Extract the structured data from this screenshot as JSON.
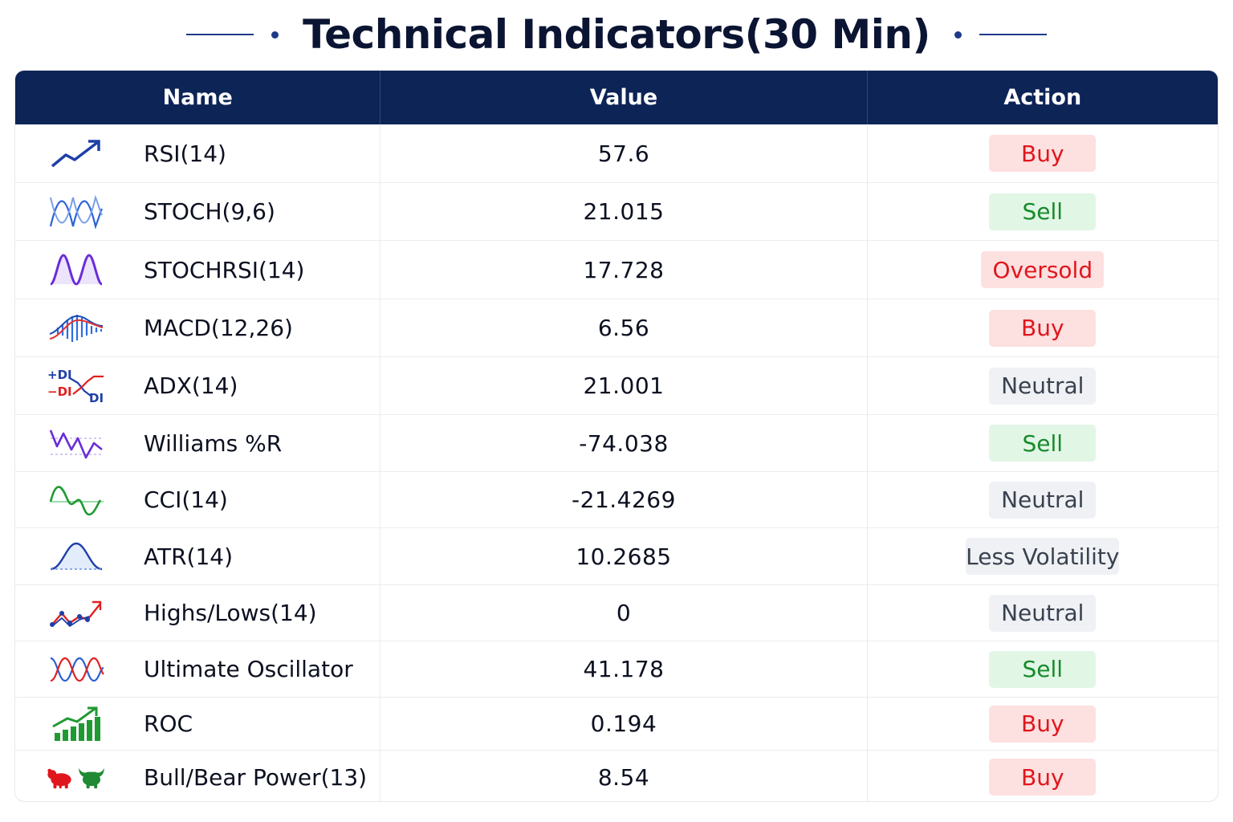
{
  "title": "Technical Indicators(30 Min)",
  "columns": {
    "name": "Name",
    "value": "Value",
    "action": "Action"
  },
  "rows": [
    {
      "name": "RSI(14)",
      "value": "57.6",
      "action": "Buy",
      "action_type": "buy",
      "icon": "trend-up-arrow-icon"
    },
    {
      "name": "STOCH(9,6)",
      "value": "21.015",
      "action": "Sell",
      "action_type": "sell",
      "icon": "stochastic-waves-icon"
    },
    {
      "name": "STOCHRSI(14)",
      "value": "17.728",
      "action": "Oversold",
      "action_type": "oversold",
      "icon": "stochrsi-wave-icon"
    },
    {
      "name": "MACD(12,26)",
      "value": "6.56",
      "action": "Buy",
      "action_type": "buy",
      "icon": "macd-histogram-icon"
    },
    {
      "name": "ADX(14)",
      "value": "21.001",
      "action": "Neutral",
      "action_type": "neutral",
      "icon": "adx-di-lines-icon"
    },
    {
      "name": "Williams %R",
      "value": "-74.038",
      "action": "Sell",
      "action_type": "sell",
      "icon": "williams-r-wave-icon"
    },
    {
      "name": "CCI(14)",
      "value": "-21.4269",
      "action": "Neutral",
      "action_type": "neutral",
      "icon": "cci-wave-icon"
    },
    {
      "name": "ATR(14)",
      "value": "10.2685",
      "action": "Less Volatility",
      "action_type": "lessvol",
      "icon": "atr-bell-curve-icon"
    },
    {
      "name": "Highs/Lows(14)",
      "value": "0",
      "action": "Neutral",
      "action_type": "neutral",
      "icon": "highs-lows-line-icon"
    },
    {
      "name": "Ultimate Oscillator",
      "value": "41.178",
      "action": "Sell",
      "action_type": "sell",
      "icon": "oscillator-waves-icon"
    },
    {
      "name": "ROC",
      "value": "0.194",
      "action": "Buy",
      "action_type": "buy",
      "icon": "roc-bars-arrow-icon"
    },
    {
      "name": "Bull/Bear Power(13)",
      "value": "8.54",
      "action": "Buy",
      "action_type": "buy",
      "icon": "bull-bear-icon"
    }
  ],
  "colors": {
    "header_bg": "#0d2457",
    "buy": "#e0161c",
    "sell": "#178a2a",
    "neutral": "#394150"
  }
}
